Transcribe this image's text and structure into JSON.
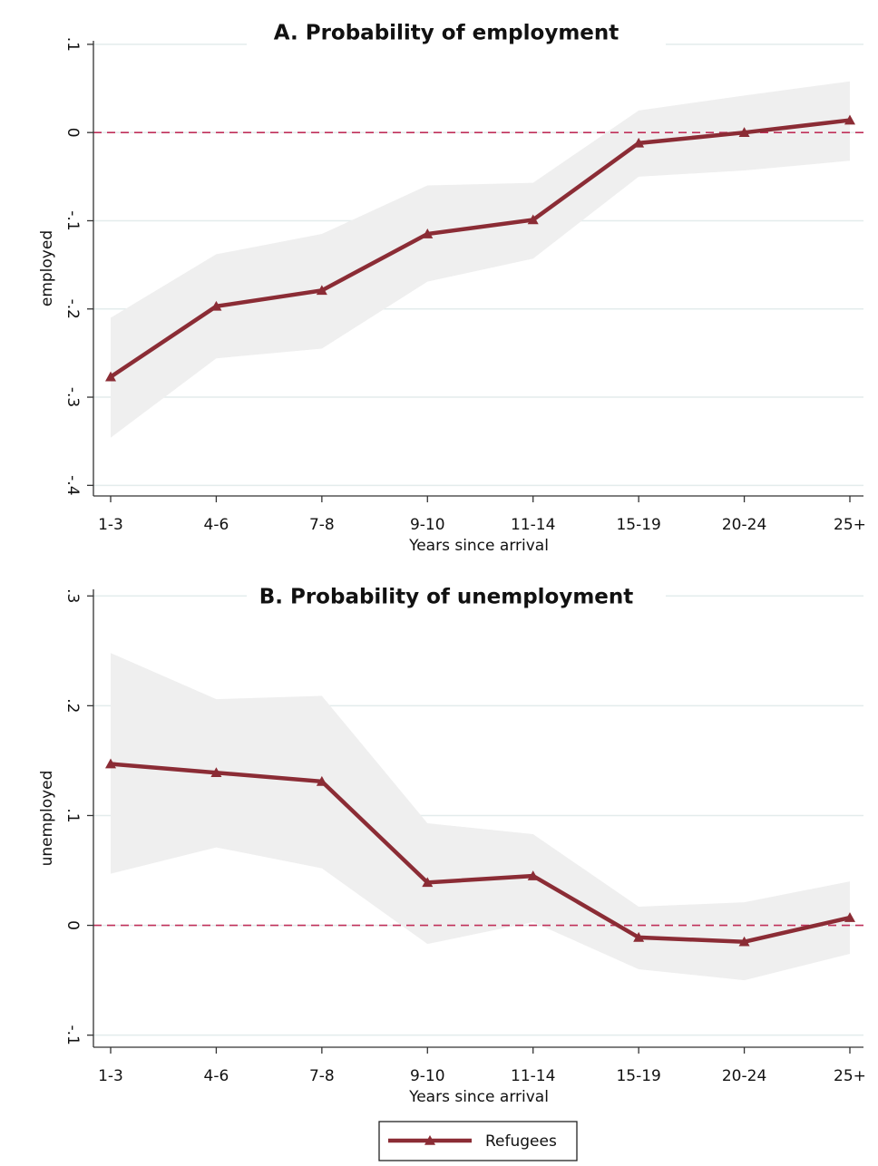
{
  "chart_data": [
    {
      "type": "line",
      "title": "A. Probability of employment",
      "x_label": "Years since arrival",
      "y_label": "employed",
      "categories": [
        "1-3",
        "4-6",
        "7-8",
        "9-10",
        "11-14",
        "15-19",
        "20-24",
        "25+"
      ],
      "series": [
        {
          "color": "#8b2c35",
          "values": [
            -0.277,
            -0.197,
            -0.179,
            -0.115,
            -0.099,
            -0.012,
            0.0,
            0.014
          ],
          "ci_upper": [
            -0.21,
            -0.138,
            -0.115,
            -0.06,
            -0.057,
            0.025,
            0.042,
            0.058
          ],
          "ci_lower": [
            -0.346,
            -0.256,
            -0.245,
            -0.169,
            -0.143,
            -0.05,
            -0.043,
            -0.032
          ]
        }
      ],
      "band_color": "#efefef",
      "hline": 0,
      "hline_color": "#c0305a",
      "ylim": [
        -0.412,
        0.104
      ],
      "yticks": [
        {
          "value": 0.1,
          "label": ".1"
        },
        0,
        {
          "value": -0.1,
          "label": "-.1"
        },
        {
          "value": -0.2,
          "label": "-.2"
        },
        {
          "value": -0.3,
          "label": "-.3"
        },
        {
          "value": -0.4,
          "label": "-.4"
        }
      ],
      "grid": true
    },
    {
      "type": "line",
      "title": "B. Probability of unemployment",
      "x_label": "Years since arrival",
      "y_label": "unemployed",
      "categories": [
        "1-3",
        "4-6",
        "7-8",
        "9-10",
        "11-14",
        "15-19",
        "20-24",
        "25+"
      ],
      "series": [
        {
          "name": "Refugees",
          "color": "#8b2c35",
          "values": [
            0.147,
            0.139,
            0.131,
            0.039,
            0.045,
            -0.011,
            -0.015,
            0.007
          ],
          "ci_upper": [
            0.248,
            0.206,
            0.209,
            0.093,
            0.083,
            0.017,
            0.021,
            0.04
          ],
          "ci_lower": [
            0.047,
            0.071,
            0.052,
            -0.017,
            0.003,
            -0.04,
            -0.05,
            -0.026
          ]
        }
      ],
      "band_color": "#efefef",
      "hline": 0,
      "hline_color": "#c0305a",
      "ylim": [
        -0.111,
        0.306
      ],
      "yticks": [
        {
          "value": 0.3,
          "label": ".3"
        },
        {
          "value": 0.2,
          "label": ".2"
        },
        {
          "value": 0.1,
          "label": ".1"
        },
        0,
        {
          "value": -0.1,
          "label": "-.1"
        }
      ],
      "grid": true
    }
  ]
}
